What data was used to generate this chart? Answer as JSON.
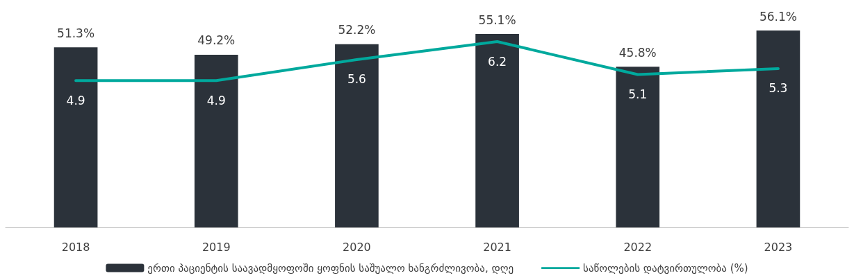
{
  "chart_data": {
    "type": "bar",
    "categories": [
      "2018",
      "2019",
      "2020",
      "2021",
      "2022",
      "2023"
    ],
    "series": [
      {
        "name": "ერთი პაციენტის საავადმყოფოში ყოფნის საშუალო ხანგრძლივობა, დღე",
        "color": "#2b323a",
        "values": [
          51.3,
          49.2,
          52.2,
          55.1,
          45.8,
          56.1
        ],
        "value_labels": [
          "51.3%",
          "49.2%",
          "52.2%",
          "55.1%",
          "45.8%",
          "56.1%"
        ]
      },
      {
        "type": "line",
        "axis": "y2",
        "name": "საწოლების დატვირთულობა (%)",
        "color": "#00a99d",
        "values": [
          4.9,
          4.9,
          5.6,
          6.2,
          5.1,
          5.3
        ],
        "data_labels": true
      }
    ],
    "legend": "bottom",
    "grid": false,
    "marker": "none"
  }
}
